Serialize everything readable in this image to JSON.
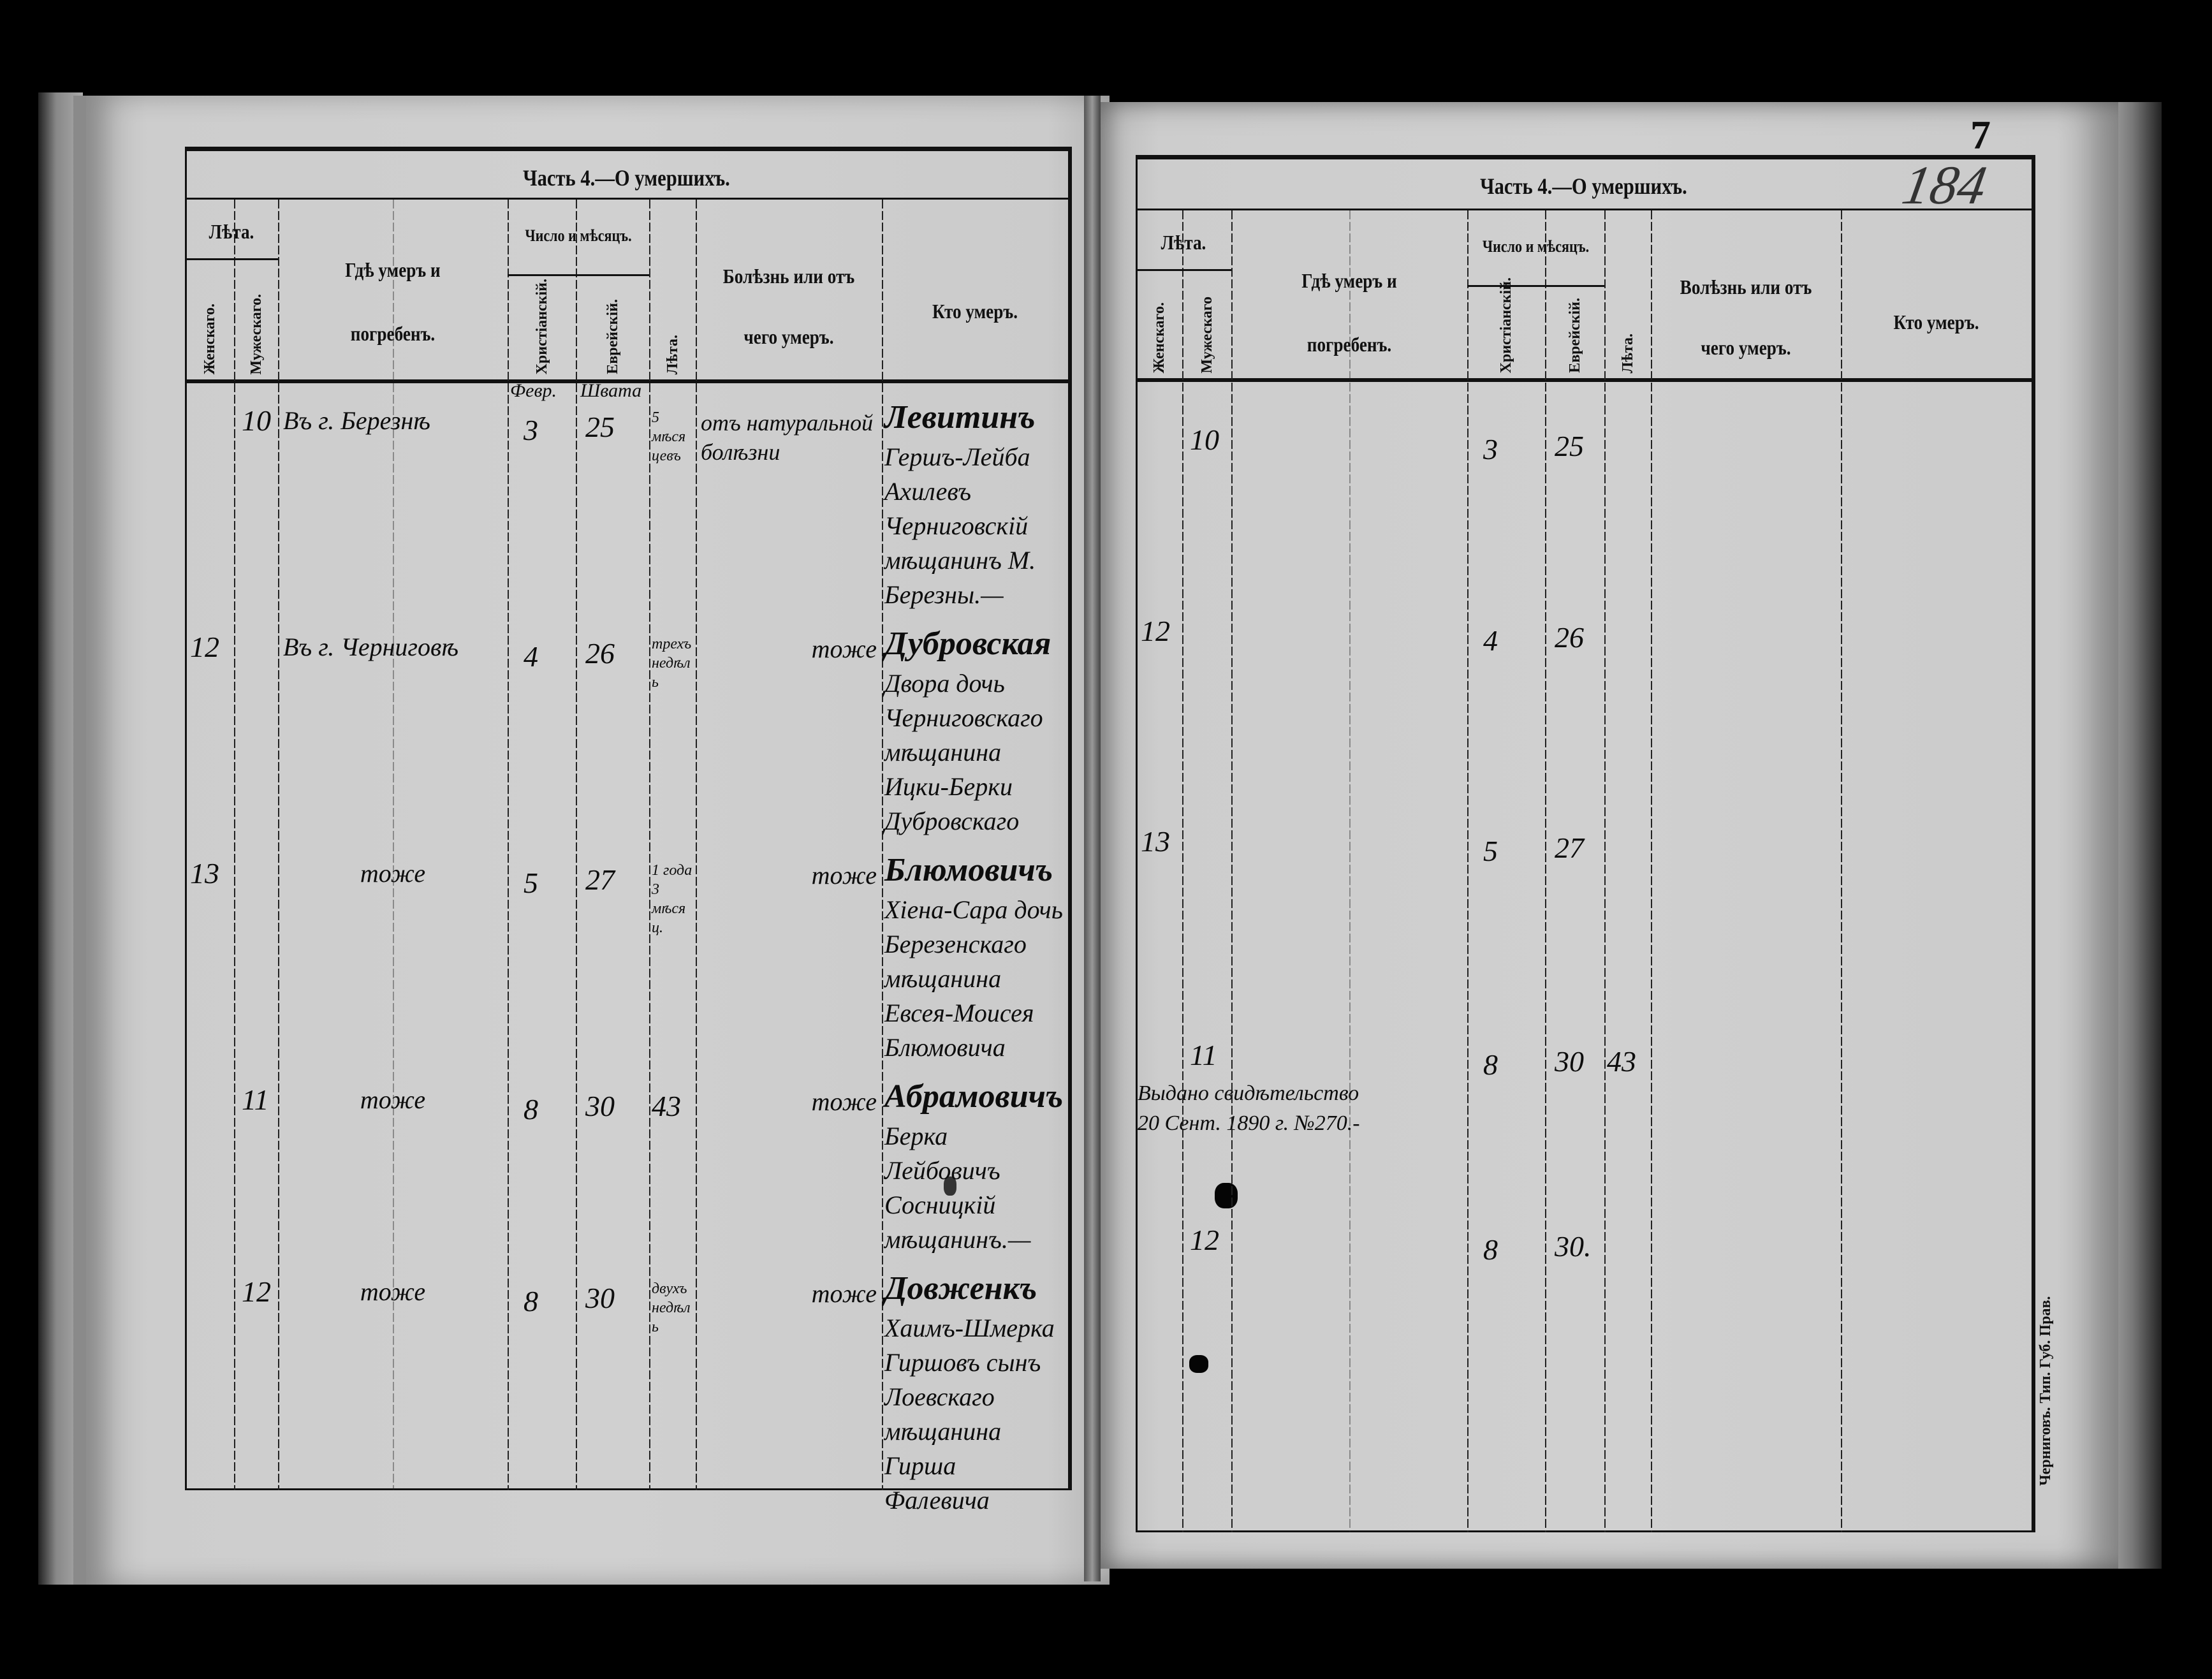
{
  "header": {
    "title": "Часть 4.—О умершихъ.",
    "years_group": "Лѣта.",
    "female": "Женскаго.",
    "male": "Мужескаго.",
    "where_line1": "Гдѣ умеръ и",
    "where_line2": "погребенъ.",
    "date_group": "Число и мѣсяцъ.",
    "christian": "Христіанскій.",
    "jewish": "Еврейскій.",
    "age": "Лѣта.",
    "cause_line1": "Болѣзнь или отъ",
    "cause_line2": "чего умеръ.",
    "who": "Кто умеръ.",
    "right_female": "Женскаго.",
    "right_male": "Мужескаго",
    "right_cause_line1": "Волѣзнь или отъ"
  },
  "left_page": {
    "month_christian": "Февр.",
    "month_jewish": "Швата",
    "rows": [
      {
        "female": "",
        "male": "10",
        "place": "Въ г. Березнѣ",
        "christian_day": "3",
        "jewish_day": "25",
        "age": "5 мѣсяцевъ",
        "cause": "отъ натуральной болѣзни",
        "who_name": "Левитинъ",
        "who_rest": "Гершъ-Лейба Ахилевъ Черниговскій мѣщанинъ М. Березны.—"
      },
      {
        "female": "12",
        "male": "",
        "place": "Въ г. Черниговѣ",
        "christian_day": "4",
        "jewish_day": "26",
        "age": "трехъ недѣль",
        "cause": "тоже",
        "who_name": "Дубровская",
        "who_rest": "Двора дочь Черниговскаго мѣщанина Ицки-Берки Дубровскаго"
      },
      {
        "female": "13",
        "male": "",
        "place": "тоже",
        "christian_day": "5",
        "jewish_day": "27",
        "age": "1 года 3 мѣсяц.",
        "cause": "тоже",
        "who_name": "Блюмовичъ",
        "who_rest": "Хіена-Сара дочь Березенскаго мѣщанина Евсея-Моисея Блюмовича"
      },
      {
        "female": "",
        "male": "11",
        "place": "тоже",
        "christian_day": "8",
        "jewish_day": "30",
        "age": "43",
        "cause": "тоже",
        "who_name": "Абрамовичъ",
        "who_rest": "Берка Лейбовичъ Сосницкій мѣщанинъ.—"
      },
      {
        "female": "",
        "male": "12",
        "place": "тоже",
        "christian_day": "8",
        "jewish_day": "30",
        "age": "двухъ недѣль",
        "cause": "тоже",
        "who_name": "Довженкъ",
        "who_rest": "Хаимъ-Шмерка Гиршовъ сынъ Лоевскаго мѣщанина Гирша Фалевича"
      }
    ]
  },
  "right_page": {
    "page_number": "184",
    "sheet_number": "7",
    "rows": [
      {
        "female": "",
        "male": "10",
        "christian_day": "3",
        "jewish_day": "25",
        "age": ""
      },
      {
        "female": "12",
        "male": "",
        "christian_day": "4",
        "jewish_day": "26",
        "age": ""
      },
      {
        "female": "13",
        "male": "",
        "christian_day": "5",
        "jewish_day": "27",
        "age": ""
      },
      {
        "female": "",
        "male": "11",
        "christian_day": "8",
        "jewish_day": "30",
        "age": "43"
      },
      {
        "female": "",
        "male": "12",
        "christian_day": "8",
        "jewish_day": "30.",
        "age": ""
      }
    ],
    "certificate_note_line1": "Выдано свидѣтельство",
    "certificate_note_line2": "20 Сент. 1890 г. №270.-",
    "printer_imprint": "Черниговъ. Тип. Губ. Прав."
  },
  "colors": {
    "paper": "#cdcdcd",
    "ink": "#111111",
    "background": "#000000"
  }
}
